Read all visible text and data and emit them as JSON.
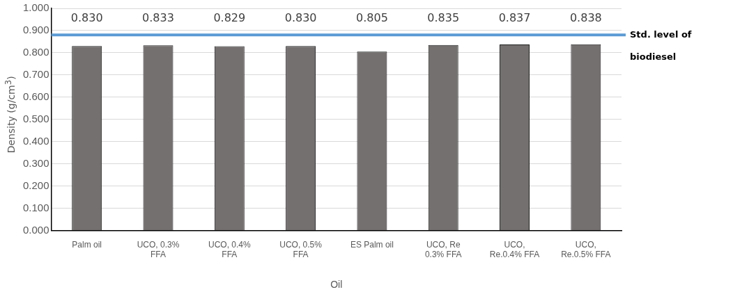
{
  "chart_data": {
    "type": "bar",
    "xlabel": "Oil",
    "ylabel": "Density (g/cm$^{3}$)",
    "categories": [
      "Palm oil",
      "UCO, 0.3% FFA",
      "UCO, 0.4% FFA",
      "UCO, 0.5% FFA",
      "ES Palm oil",
      "UCO, Re 0.3% FFA",
      "UCO, Re.0.4% FFA",
      "UCO, Re.0.5% FFA"
    ],
    "values": [
      0.83,
      0.833,
      0.829,
      0.83,
      0.805,
      0.835,
      0.837,
      0.838
    ],
    "color": "#757070",
    "ylim": [
      0,
      1
    ],
    "yticks": [
      {
        "value": 0,
        "label": "0.000"
      },
      {
        "value": 0.1,
        "label": "0.100"
      },
      {
        "value": 0.2,
        "label": "0.200"
      },
      {
        "value": 0.3,
        "label": "0.300"
      },
      {
        "value": 0.4,
        "label": "0.400"
      },
      {
        "value": 0.5,
        "label": "0.500"
      },
      {
        "value": 0.6,
        "label": "0.600"
      },
      {
        "value": 0.7,
        "label": "0.700"
      },
      {
        "value": 0.8,
        "label": "0.800"
      },
      {
        "value": 0.9,
        "label": "0.900"
      },
      {
        "value": 1,
        "label": "1.000"
      }
    ],
    "grid": "y",
    "value_labels": [
      "0.830",
      "0.833",
      "0.829",
      "0.830",
      "0.805",
      "0.835",
      "0.837",
      "0.838"
    ],
    "ref_lines": [
      {
        "axis": "y",
        "value": 0.88,
        "label": "Std. level of biodiesel",
        "color": "#5b9bd5"
      }
    ],
    "legend": false
  }
}
